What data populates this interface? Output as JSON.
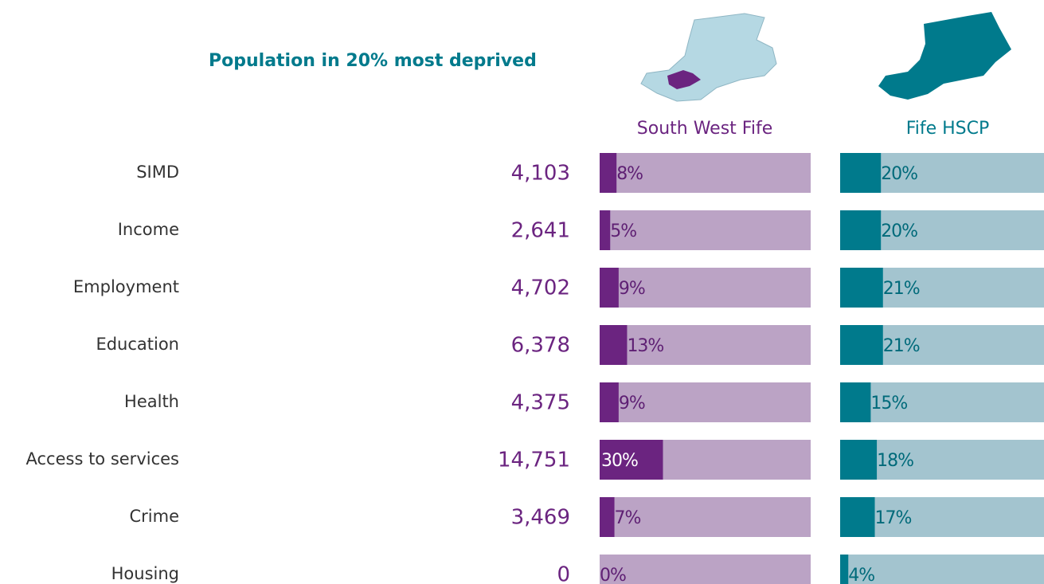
{
  "chart_data": {
    "type": "bar",
    "title": "Population in 20% most deprived",
    "categories": [
      "SIMD",
      "Income",
      "Employment",
      "Education",
      "Health",
      "Access to services",
      "Crime",
      "Housing"
    ],
    "counts": {
      "values": [
        4103,
        2641,
        4702,
        6378,
        4375,
        14751,
        3469,
        0
      ],
      "value_labels": [
        "4,103",
        "2,641",
        "4,702",
        "6,378",
        "4,375",
        "14,751",
        "3,469",
        "0"
      ],
      "color": "#6b2480"
    },
    "series": [
      {
        "name": "South West Fife",
        "color": "#6b2480",
        "background": "#bba3c5",
        "label_color": "#5e1f73",
        "values": [
          8,
          5,
          9,
          13,
          9,
          30,
          7,
          0
        ],
        "value_labels": [
          "8%",
          "5%",
          "9%",
          "13%",
          "9%",
          "30%",
          "7%",
          "0%"
        ]
      },
      {
        "name": "Fife HSCP",
        "color": "#007a8c",
        "background": "#a3c4cf",
        "label_color": "#006a7a",
        "values": [
          20,
          20,
          21,
          21,
          15,
          18,
          17,
          4
        ],
        "value_labels": [
          "20%",
          "20%",
          "21%",
          "21%",
          "15%",
          "18%",
          "17%",
          "4%"
        ]
      }
    ],
    "xlim": [
      0,
      100
    ]
  }
}
